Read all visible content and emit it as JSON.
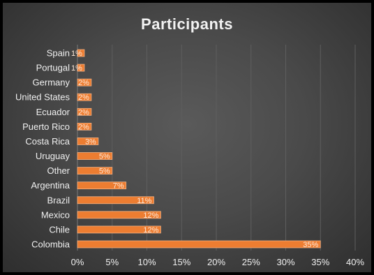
{
  "chart_data": {
    "type": "bar",
    "orientation": "horizontal",
    "title": "Participants",
    "categories": [
      "Spain",
      "Portugal",
      "Germany",
      "United States",
      "Ecuador",
      "Puerto Rico",
      "Costa Rica",
      "Uruguay",
      "Other",
      "Argentina",
      "Brazil",
      "Mexico",
      "Chile",
      "Colombia"
    ],
    "values": [
      1,
      1,
      2,
      2,
      2,
      2,
      3,
      5,
      5,
      7,
      11,
      12,
      12,
      35
    ],
    "value_unit": "%",
    "data_labels": [
      "1%",
      "1%",
      "2%",
      "2%",
      "2%",
      "2%",
      "3%",
      "5%",
      "5%",
      "7%",
      "11%",
      "12%",
      "12%",
      "35%"
    ],
    "xlim": [
      0,
      40
    ],
    "x_ticks": [
      "0%",
      "5%",
      "10%",
      "15%",
      "20%",
      "25%",
      "30%",
      "35%",
      "40%"
    ],
    "grid": true,
    "legend": "none",
    "colors": {
      "bar": "#ed7d31",
      "bar_edge": "#f4b183",
      "background": "#4a4a4a",
      "text": "#f0f0f0",
      "grid": "#5e5e5e"
    }
  }
}
